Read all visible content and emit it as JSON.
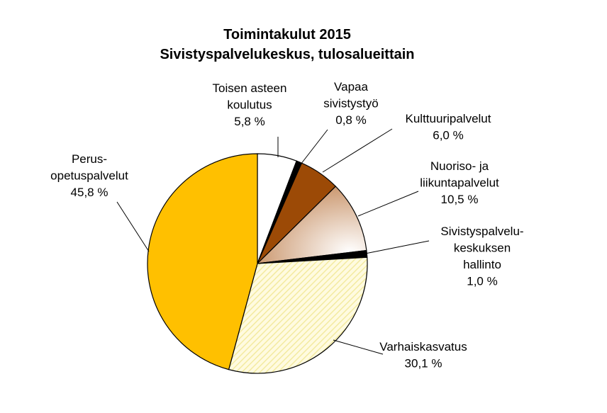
{
  "chart_data": {
    "type": "pie",
    "title": "Toimintakulut 2015",
    "subtitle": "Sivistyspalvelukeskus, tulosalueittain",
    "categories": [
      "Toisen asteen\nkoulutus",
      "Vapaa\nsivistystyö",
      "Kulttuuripalvelut",
      "Nuoriso- ja\nliikuntapalvelut",
      "Sivistyspalvelu-\nkeskuksen\nhallinto",
      "Varhaiskasvatus",
      "Perus-\nopetuspalvelut"
    ],
    "values": [
      5.8,
      0.8,
      6.0,
      10.5,
      1.0,
      30.1,
      45.8
    ],
    "value_labels": [
      "5,8 %",
      "0,8 %",
      "6,0 %",
      "10,5 %",
      "1,0 %",
      "30,1 %",
      "45,8 %"
    ],
    "colors": [
      "#ffffff",
      "#000000",
      "#9c4a06",
      "#c9946a",
      "#000000",
      "#f3eaa0",
      "#ffc000"
    ]
  }
}
